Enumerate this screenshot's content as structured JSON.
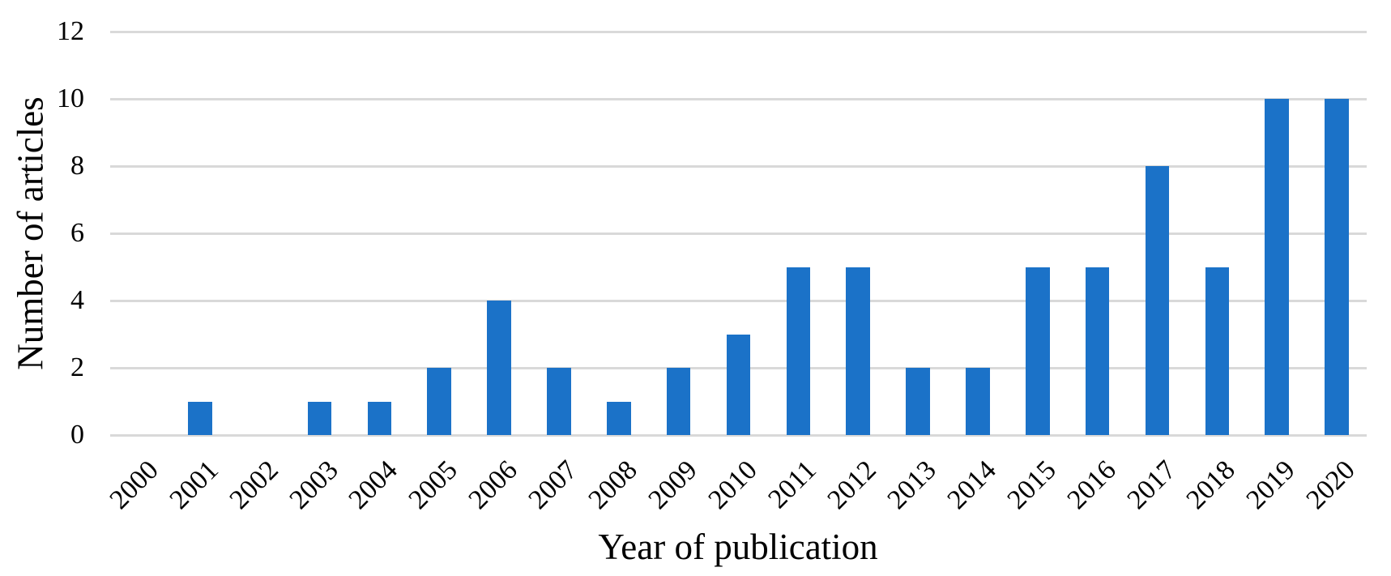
{
  "chart_data": {
    "type": "bar",
    "title": "",
    "xlabel": "Year of publication",
    "ylabel": "Number of articles",
    "categories": [
      "2000",
      "2001",
      "2002",
      "2003",
      "2004",
      "2005",
      "2006",
      "2007",
      "2008",
      "2009",
      "2010",
      "2011",
      "2012",
      "2013",
      "2014",
      "2015",
      "2016",
      "2017",
      "2018",
      "2019",
      "2020"
    ],
    "values": [
      0,
      1,
      0,
      1,
      1,
      2,
      4,
      2,
      1,
      2,
      3,
      5,
      5,
      2,
      2,
      5,
      5,
      8,
      5,
      10,
      10
    ],
    "ylim": [
      0,
      12
    ],
    "yticks": [
      0,
      2,
      4,
      6,
      8,
      10,
      12
    ],
    "grid": true,
    "legend": "none",
    "bar_color": "#1B72C8",
    "gridline_color": "#D9D9D9",
    "background_color": "#FFFFFF",
    "text_color": "#000000"
  }
}
